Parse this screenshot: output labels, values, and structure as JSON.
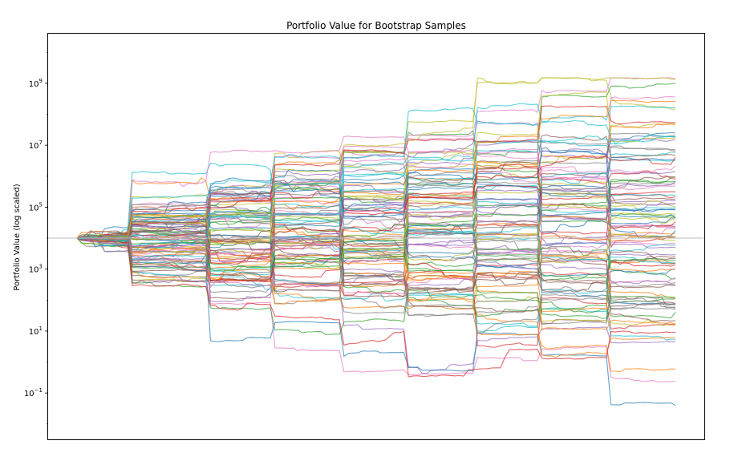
{
  "chart_data": {
    "type": "line",
    "title": "Portfolio Value for Bootstrap Samples",
    "xlabel": "",
    "ylabel": "Portfolio Value (log scaled)",
    "y_scale": "log",
    "ylim": [
      0.003,
      40000000000
    ],
    "y_ticks": [
      {
        "value": 0.1,
        "base": "10",
        "exp": "−1"
      },
      {
        "value": 10,
        "base": "10",
        "exp": "1"
      },
      {
        "value": 1000,
        "base": "10",
        "exp": "3"
      },
      {
        "value": 100000,
        "base": "10",
        "exp": "5"
      },
      {
        "value": 10000000,
        "base": "10",
        "exp": "7"
      },
      {
        "value": 1000000000,
        "base": "10",
        "exp": "9"
      }
    ],
    "x_tick_labels": "none",
    "x_range": [
      0,
      1
    ],
    "reference_line": {
      "y": 10000,
      "color": "#bbbbbb"
    },
    "grid": false,
    "legend": "none",
    "start_value": 10000,
    "n_series": 100,
    "n_blocks": 9,
    "palette": [
      "#1f77b4",
      "#ff7f0e",
      "#2ca02c",
      "#d62728",
      "#9467bd",
      "#8c564b",
      "#e377c2",
      "#7f7f7f",
      "#bcbd22",
      "#17becf"
    ],
    "series_summary": {
      "max_final_value": 1000000000,
      "min_final_value": 0.015,
      "peak_value": 1500000000
    }
  }
}
